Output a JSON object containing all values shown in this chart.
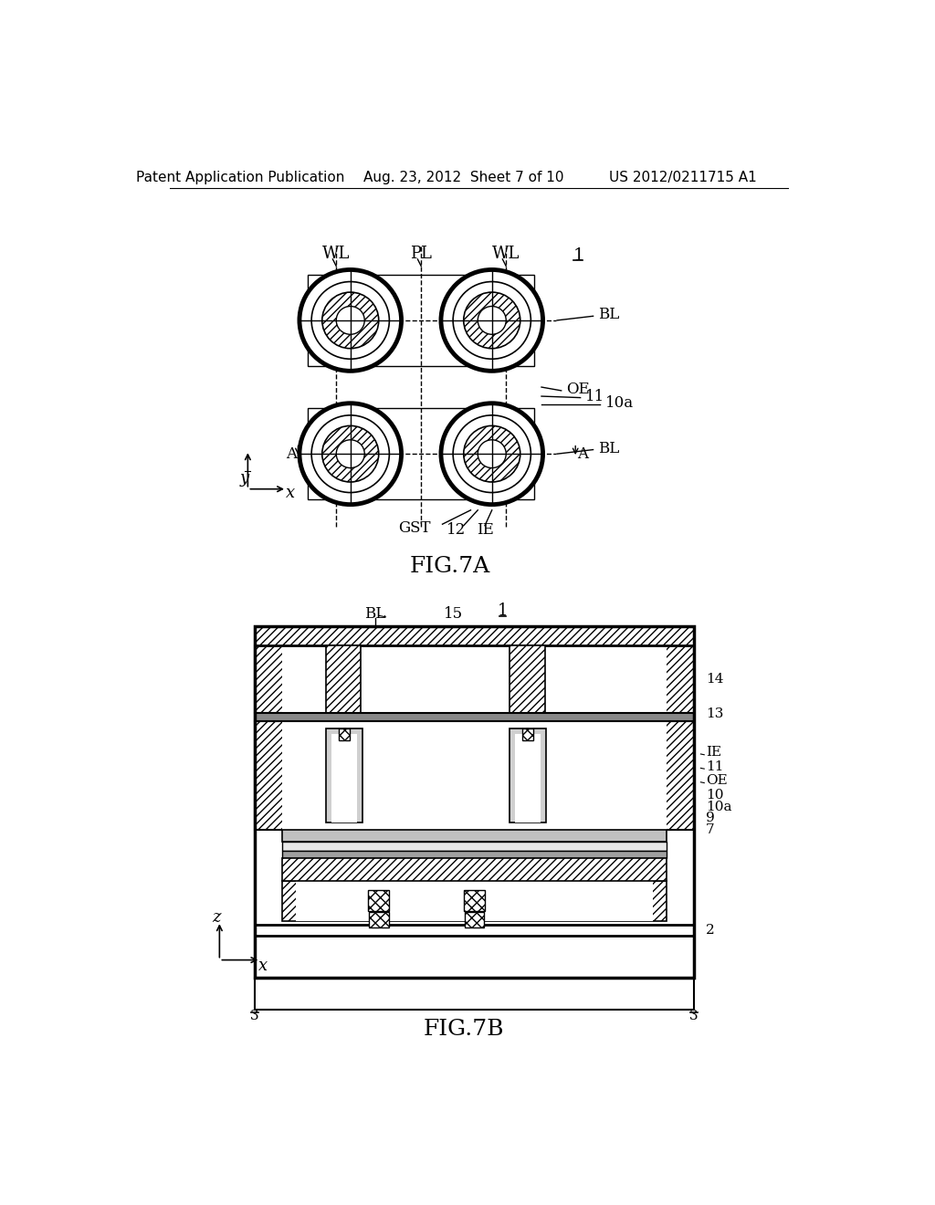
{
  "header_left": "Patent Application Publication",
  "header_mid": "Aug. 23, 2012  Sheet 7 of 10",
  "header_right": "US 2012/0211715 A1",
  "fig7a_label": "FIG.7A",
  "fig7b_label": "FIG.7B",
  "bg_color": "#ffffff",
  "line_color": "#000000",
  "gray_light": "#c8c8c8",
  "gray_dot": "#b0b0b0"
}
